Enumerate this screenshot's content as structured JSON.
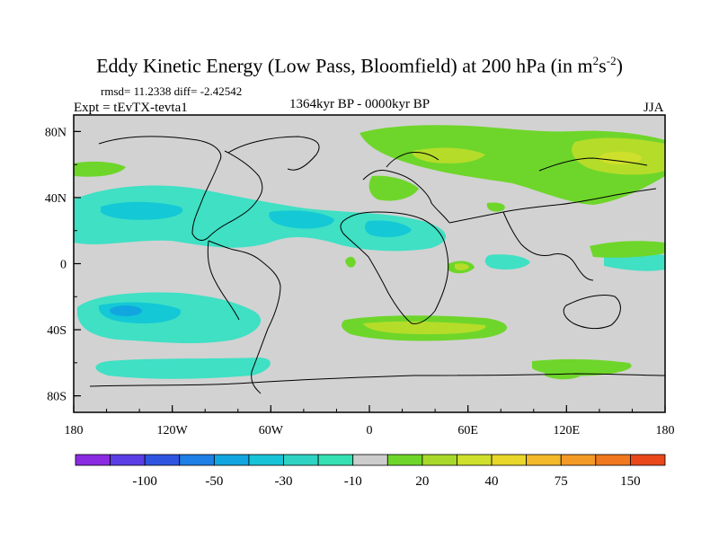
{
  "title": {
    "main": "Eddy Kinetic Energy (Low Pass, Bloomfield) at 200 hPa (in m",
    "sup1": "2",
    "mid": "s",
    "sup2": "-2",
    "close": ")"
  },
  "stats": {
    "text": "rmsd= 11.2338 diff= -2.42542"
  },
  "experiment": {
    "text": "Expt = tEvTX-tevta1"
  },
  "period": {
    "text": "1364kyr BP - 0000kyr BP"
  },
  "season": {
    "text": "JJA"
  },
  "map": {
    "lon_ticks": [
      "180",
      "120W",
      "60W",
      "0",
      "60E",
      "120E",
      "180"
    ],
    "lat_ticks": [
      "80N",
      "40N",
      "0",
      "40S",
      "80S"
    ],
    "background_color": "#d2d2d2"
  },
  "colorbar": {
    "labels": [
      "-100",
      "-50",
      "-30",
      "-10",
      "20",
      "40",
      "75",
      "150"
    ],
    "colors": [
      "#8a2be2",
      "#5b3ee6",
      "#2f55e0",
      "#1e7fe6",
      "#11a6e0",
      "#17c3d6",
      "#2fd3c4",
      "#35e0b2",
      "#cdcdcd",
      "#6ed62a",
      "#a8d92a",
      "#cfe02c",
      "#e8d62a",
      "#f2b92a",
      "#f39a26",
      "#f0781e",
      "#e8481a"
    ]
  }
}
